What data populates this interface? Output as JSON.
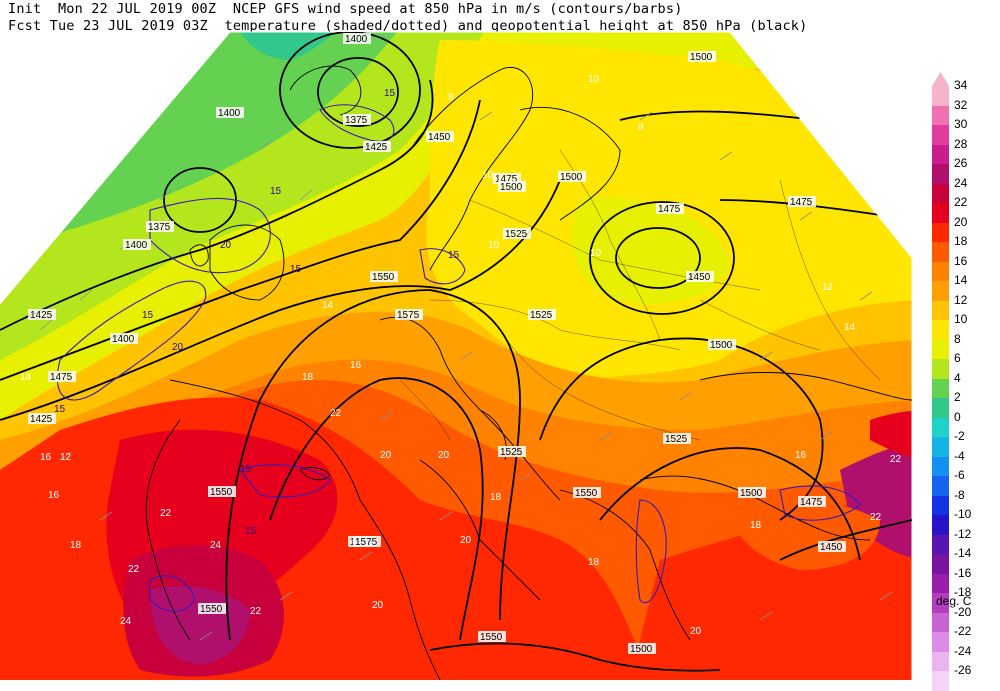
{
  "header": {
    "line1": "Init  Mon 22 JUL 2019 00Z  NCEP GFS wind speed at 850 hPa in m/s (contours/barbs)",
    "line2": "Fcst Tue 23 JUL 2019 03Z  temperature (shaded/dotted) and geopotential height at 850 hPa (black)"
  },
  "colorbar": {
    "units": "deg. C",
    "levels": [
      {
        "label": "34",
        "color": "#f5b4c8"
      },
      {
        "label": "32",
        "color": "#f070b0"
      },
      {
        "label": "30",
        "color": "#e03ca0"
      },
      {
        "label": "28",
        "color": "#cc1a90"
      },
      {
        "label": "26",
        "color": "#b0106c"
      },
      {
        "label": "24",
        "color": "#c8003c"
      },
      {
        "label": "22",
        "color": "#e6001e"
      },
      {
        "label": "20",
        "color": "#ff2800"
      },
      {
        "label": "18",
        "color": "#ff5a00"
      },
      {
        "label": "16",
        "color": "#ff8200"
      },
      {
        "label": "14",
        "color": "#ffa000"
      },
      {
        "label": "12",
        "color": "#ffc300"
      },
      {
        "label": "10",
        "color": "#ffe600"
      },
      {
        "label": "8",
        "color": "#e6f000"
      },
      {
        "label": "6",
        "color": "#b4e61e"
      },
      {
        "label": "4",
        "color": "#64d250"
      },
      {
        "label": "2",
        "color": "#32c88c"
      },
      {
        "label": "0",
        "color": "#1ed2c8"
      },
      {
        "label": "-2",
        "color": "#14b4e6"
      },
      {
        "label": "-4",
        "color": "#1490f0"
      },
      {
        "label": "-6",
        "color": "#1464f0"
      },
      {
        "label": "-8",
        "color": "#1432e6"
      },
      {
        "label": "-10",
        "color": "#2814c8"
      },
      {
        "label": "-12",
        "color": "#5a14b4"
      },
      {
        "label": "-14",
        "color": "#7814a0"
      },
      {
        "label": "-16",
        "color": "#961eaa"
      },
      {
        "label": "-18",
        "color": "#b43cbe"
      },
      {
        "label": "-20",
        "color": "#c864d2"
      },
      {
        "label": "-22",
        "color": "#dc8ce6"
      },
      {
        "label": "-24",
        "color": "#ebb4f0"
      },
      {
        "label": "-26",
        "color": "#f5d2f8"
      }
    ]
  },
  "height_labels": [
    "1400",
    "1400",
    "1375",
    "1425",
    "1450",
    "1475",
    "1500",
    "1450",
    "1475",
    "1475",
    "1375",
    "1400",
    "1425",
    "1525",
    "1500",
    "1550",
    "1575",
    "1425",
    "1400",
    "1475",
    "1525",
    "1500",
    "1500",
    "1525",
    "1550",
    "1575",
    "1550",
    "1575",
    "1550",
    "1550",
    "1500",
    "1475",
    "1450",
    "1500",
    "1525"
  ],
  "temp_labels": [
    "8",
    "10",
    "8",
    "10",
    "10",
    "10",
    "12",
    "14",
    "14",
    "16",
    "18",
    "20",
    "22",
    "20",
    "22",
    "22",
    "24",
    "22",
    "20",
    "18",
    "20",
    "18",
    "16",
    "18",
    "16",
    "14",
    "12",
    "22",
    "24",
    "20",
    "22",
    "18",
    "16"
  ],
  "wind_labels": [
    "15",
    "15",
    "20",
    "15",
    "20",
    "15",
    "15",
    "15",
    "15",
    "15"
  ]
}
